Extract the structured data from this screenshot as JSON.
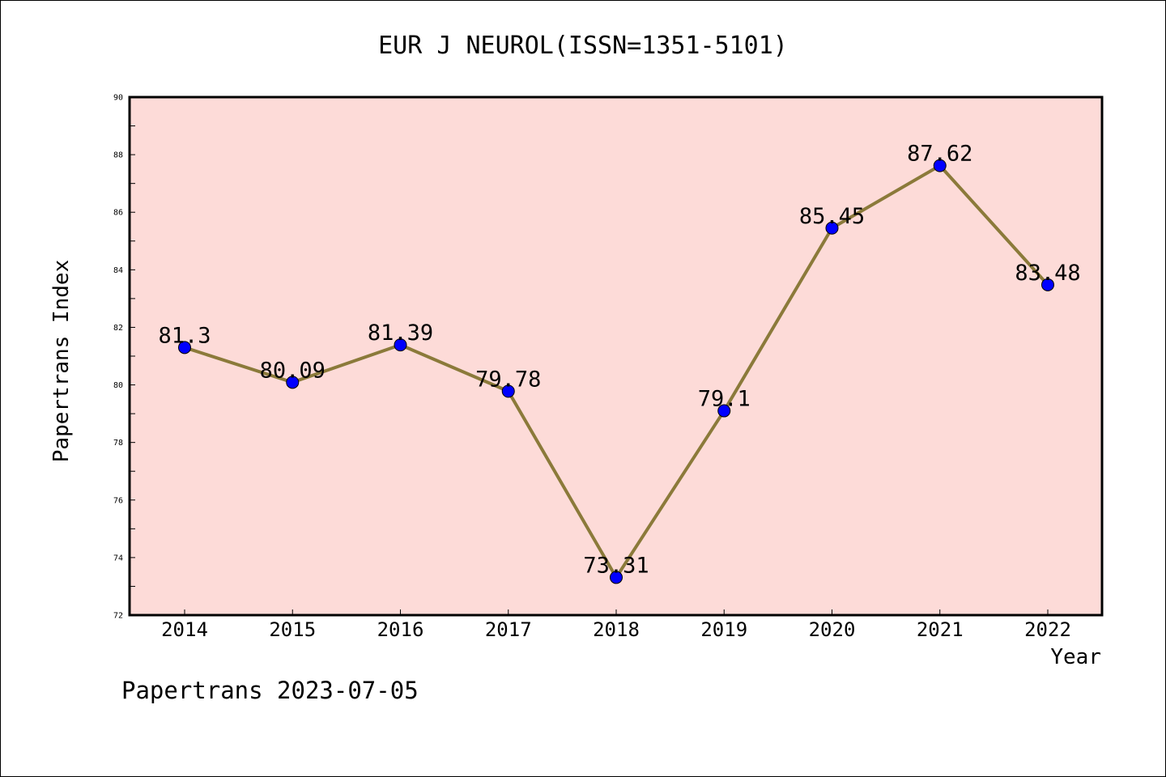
{
  "chart_data": {
    "type": "line",
    "title": "EUR J NEUROL(ISSN=1351-5101)",
    "xlabel": "Year",
    "ylabel": "Papertrans Index",
    "categories": [
      "2014",
      "2015",
      "2016",
      "2017",
      "2018",
      "2019",
      "2020",
      "2021",
      "2022"
    ],
    "series": [
      {
        "values": [
          81.3,
          80.09,
          81.39,
          79.78,
          73.31,
          79.1,
          85.45,
          87.62,
          83.48
        ],
        "labels": [
          "81.3",
          "80.09",
          "81.39",
          "79.78",
          "73.31",
          "79.1",
          "85.45",
          "87.62",
          "83.48"
        ]
      }
    ],
    "ylim": [
      72,
      90
    ],
    "yticks": [
      "72",
      "74",
      "76",
      "78",
      "80",
      "82",
      "84",
      "86",
      "88",
      "90"
    ],
    "grid": false,
    "legend": "none",
    "colors": {
      "plot_background": "#fddbd8",
      "line": "#8b7a3a",
      "marker": "#0000ff"
    }
  },
  "footer": {
    "text": "Papertrans 2023-07-05"
  }
}
